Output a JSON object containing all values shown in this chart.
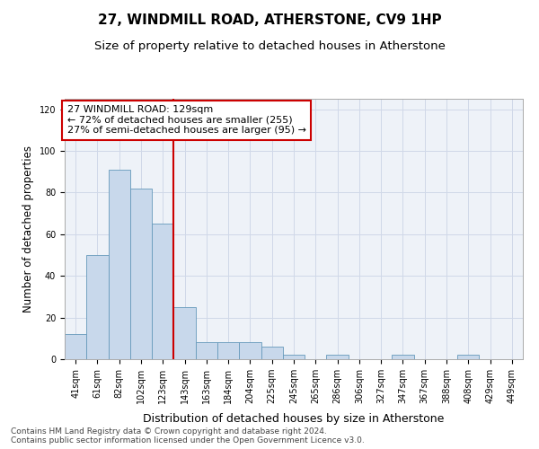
{
  "title": "27, WINDMILL ROAD, ATHERSTONE, CV9 1HP",
  "subtitle": "Size of property relative to detached houses in Atherstone",
  "xlabel": "Distribution of detached houses by size in Atherstone",
  "ylabel": "Number of detached properties",
  "categories": [
    "41sqm",
    "61sqm",
    "82sqm",
    "102sqm",
    "123sqm",
    "143sqm",
    "163sqm",
    "184sqm",
    "204sqm",
    "225sqm",
    "245sqm",
    "265sqm",
    "286sqm",
    "306sqm",
    "327sqm",
    "347sqm",
    "367sqm",
    "388sqm",
    "408sqm",
    "429sqm",
    "449sqm"
  ],
  "values": [
    12,
    50,
    91,
    82,
    65,
    25,
    8,
    8,
    8,
    6,
    2,
    0,
    2,
    0,
    0,
    2,
    0,
    0,
    2,
    0,
    0
  ],
  "bar_color": "#c8d8eb",
  "bar_edge_color": "#6699bb",
  "vline_x": 4.5,
  "vline_color": "#cc0000",
  "annotation_line1": "27 WINDMILL ROAD: 129sqm",
  "annotation_line2": "← 72% of detached houses are smaller (255)",
  "annotation_line3": "27% of semi-detached houses are larger (95) →",
  "annotation_box_color": "#ffffff",
  "annotation_box_edge": "#cc0000",
  "ylim": [
    0,
    125
  ],
  "yticks": [
    0,
    20,
    40,
    60,
    80,
    100,
    120
  ],
  "grid_color": "#d0d8e8",
  "background_color": "#eef2f8",
  "footnote": "Contains HM Land Registry data © Crown copyright and database right 2024.\nContains public sector information licensed under the Open Government Licence v3.0.",
  "title_fontsize": 11,
  "subtitle_fontsize": 9.5,
  "xlabel_fontsize": 9,
  "ylabel_fontsize": 8.5,
  "tick_fontsize": 7,
  "annot_fontsize": 8,
  "footnote_fontsize": 6.5
}
